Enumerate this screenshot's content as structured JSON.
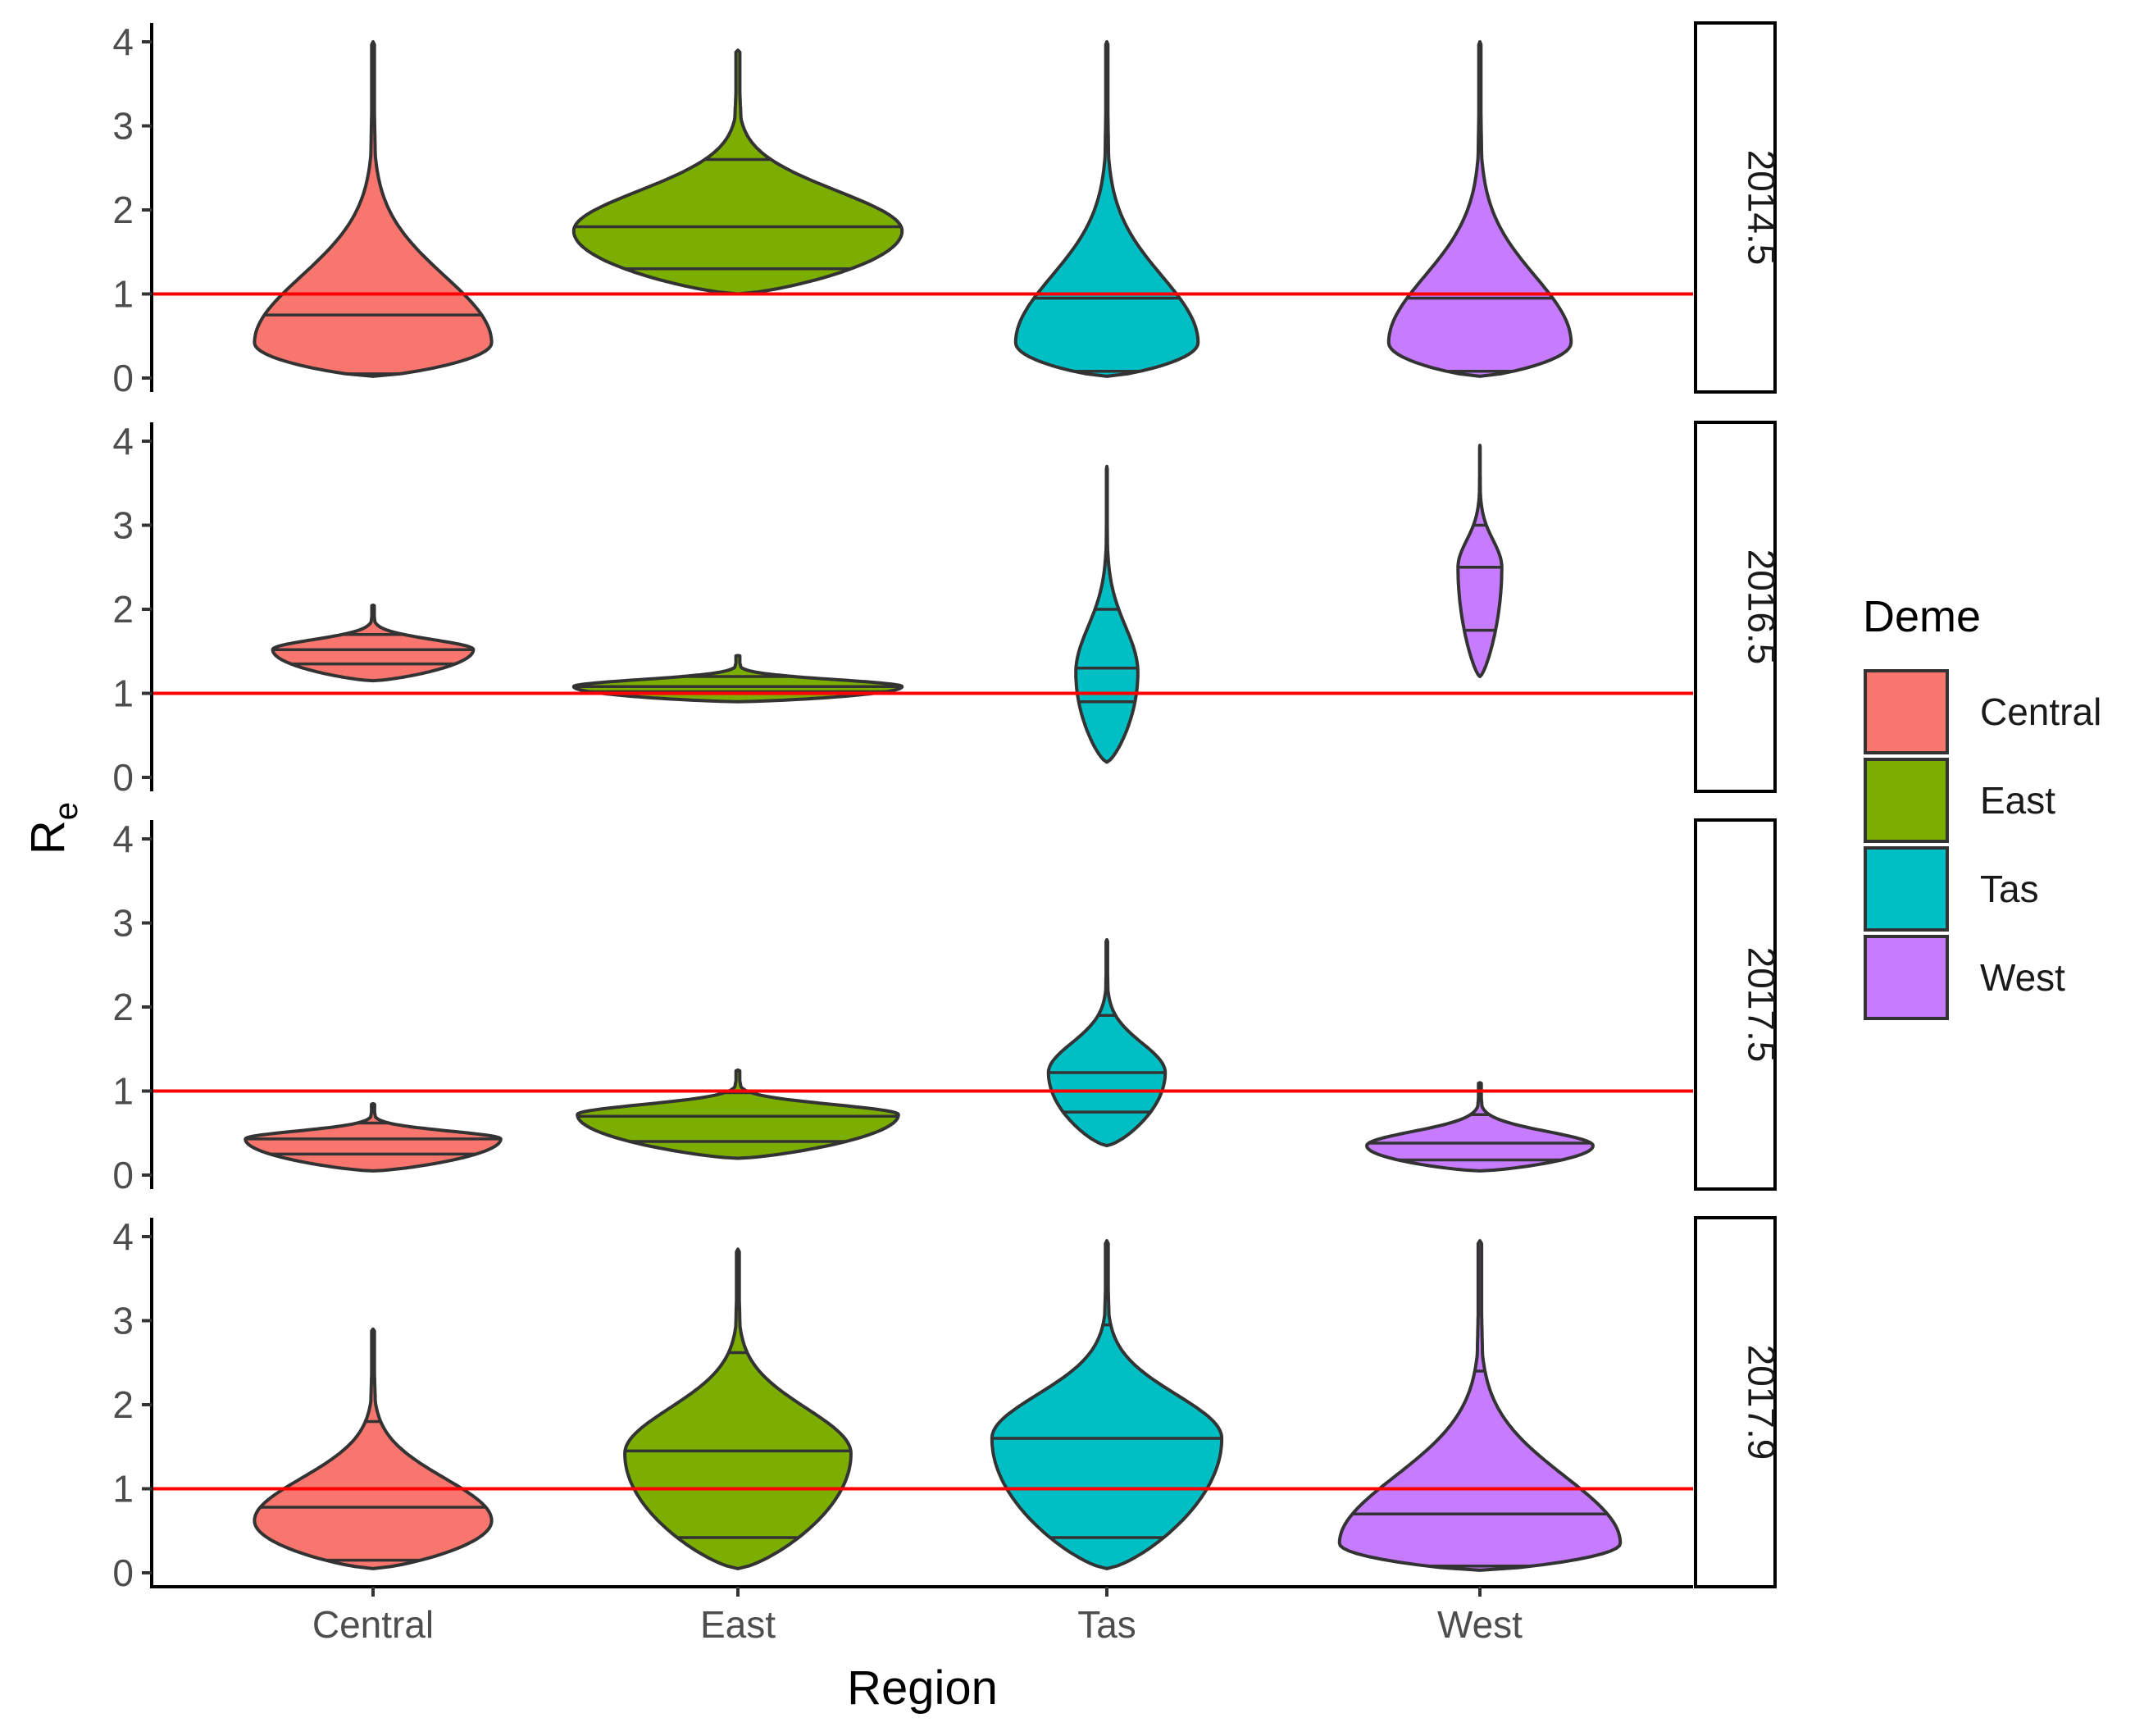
{
  "chart_data": {
    "type": "violin",
    "title": "",
    "xlabel": "Region",
    "ylabel": "R",
    "ylabel_subscript": "e",
    "categories": [
      "Central",
      "East",
      "Tas",
      "West"
    ],
    "ylim": [
      0,
      4
    ],
    "y_ticks": [
      "0",
      "1",
      "2",
      "3",
      "4"
    ],
    "reference_line": {
      "y": 1,
      "color": "#ff0000"
    },
    "legend": {
      "title": "Deme",
      "position": "right",
      "entries": [
        {
          "name": "Central",
          "color": "#F8766D"
        },
        {
          "name": "East",
          "color": "#7CAE00"
        },
        {
          "name": "Tas",
          "color": "#00BFC4"
        },
        {
          "name": "West",
          "color": "#C77CFF"
        }
      ]
    },
    "facets": [
      {
        "label": "2014.5",
        "series": [
          {
            "name": "Central",
            "min": 0.02,
            "max": 4.0,
            "quantiles": [
              0.05,
              0.75,
              3.0
            ],
            "mode": 0.42,
            "halfwidth": 0.65
          },
          {
            "name": "East",
            "min": 1.0,
            "max": 3.9,
            "quantiles": [
              1.3,
              1.8,
              2.6
            ],
            "mode": 1.75,
            "halfwidth": 0.9
          },
          {
            "name": "Tas",
            "min": 0.02,
            "max": 4.0,
            "quantiles": [
              0.08,
              0.95,
              3.45
            ],
            "mode": 0.42,
            "halfwidth": 0.5
          },
          {
            "name": "West",
            "min": 0.02,
            "max": 4.0,
            "quantiles": [
              0.08,
              0.95,
              3.45
            ],
            "mode": 0.42,
            "halfwidth": 0.5
          }
        ]
      },
      {
        "label": "2016.5",
        "series": [
          {
            "name": "Central",
            "min": 1.15,
            "max": 2.05,
            "quantiles": [
              1.35,
              1.52,
              1.7
            ],
            "mode": 1.52,
            "halfwidth": 0.55
          },
          {
            "name": "East",
            "min": 0.9,
            "max": 1.45,
            "quantiles": [
              1.02,
              1.08,
              1.2
            ],
            "mode": 1.08,
            "halfwidth": 0.9
          },
          {
            "name": "Tas",
            "min": 0.18,
            "max": 3.7,
            "quantiles": [
              0.9,
              1.3,
              2.0
            ],
            "mode": 1.25,
            "halfwidth": 0.17
          },
          {
            "name": "West",
            "min": 1.2,
            "max": 3.95,
            "quantiles": [
              1.75,
              2.5,
              3.0
            ],
            "mode": 2.5,
            "halfwidth": 0.12
          }
        ]
      },
      {
        "label": "2017.5",
        "series": [
          {
            "name": "Central",
            "min": 0.05,
            "max": 0.85,
            "quantiles": [
              0.25,
              0.43,
              0.62
            ],
            "mode": 0.43,
            "halfwidth": 0.7
          },
          {
            "name": "East",
            "min": 0.2,
            "max": 1.25,
            "quantiles": [
              0.4,
              0.7,
              0.98
            ],
            "mode": 0.72,
            "halfwidth": 0.88
          },
          {
            "name": "Tas",
            "min": 0.35,
            "max": 2.8,
            "quantiles": [
              0.75,
              1.22,
              1.9
            ],
            "mode": 1.22,
            "halfwidth": 0.32
          },
          {
            "name": "West",
            "min": 0.05,
            "max": 1.1,
            "quantiles": [
              0.18,
              0.38,
              0.72
            ],
            "mode": 0.35,
            "halfwidth": 0.62
          }
        ]
      },
      {
        "label": "2017.9",
        "series": [
          {
            "name": "Central",
            "min": 0.05,
            "max": 2.9,
            "quantiles": [
              0.15,
              0.78,
              1.8
            ],
            "mode": 0.62,
            "halfwidth": 0.65
          },
          {
            "name": "East",
            "min": 0.05,
            "max": 3.85,
            "quantiles": [
              0.42,
              1.45,
              2.62
            ],
            "mode": 1.42,
            "halfwidth": 0.62
          },
          {
            "name": "Tas",
            "min": 0.05,
            "max": 3.95,
            "quantiles": [
              0.42,
              1.6,
              2.95
            ],
            "mode": 1.6,
            "halfwidth": 0.63
          },
          {
            "name": "West",
            "min": 0.03,
            "max": 3.95,
            "quantiles": [
              0.08,
              0.7,
              2.4
            ],
            "mode": 0.35,
            "halfwidth": 0.77
          }
        ]
      }
    ]
  }
}
